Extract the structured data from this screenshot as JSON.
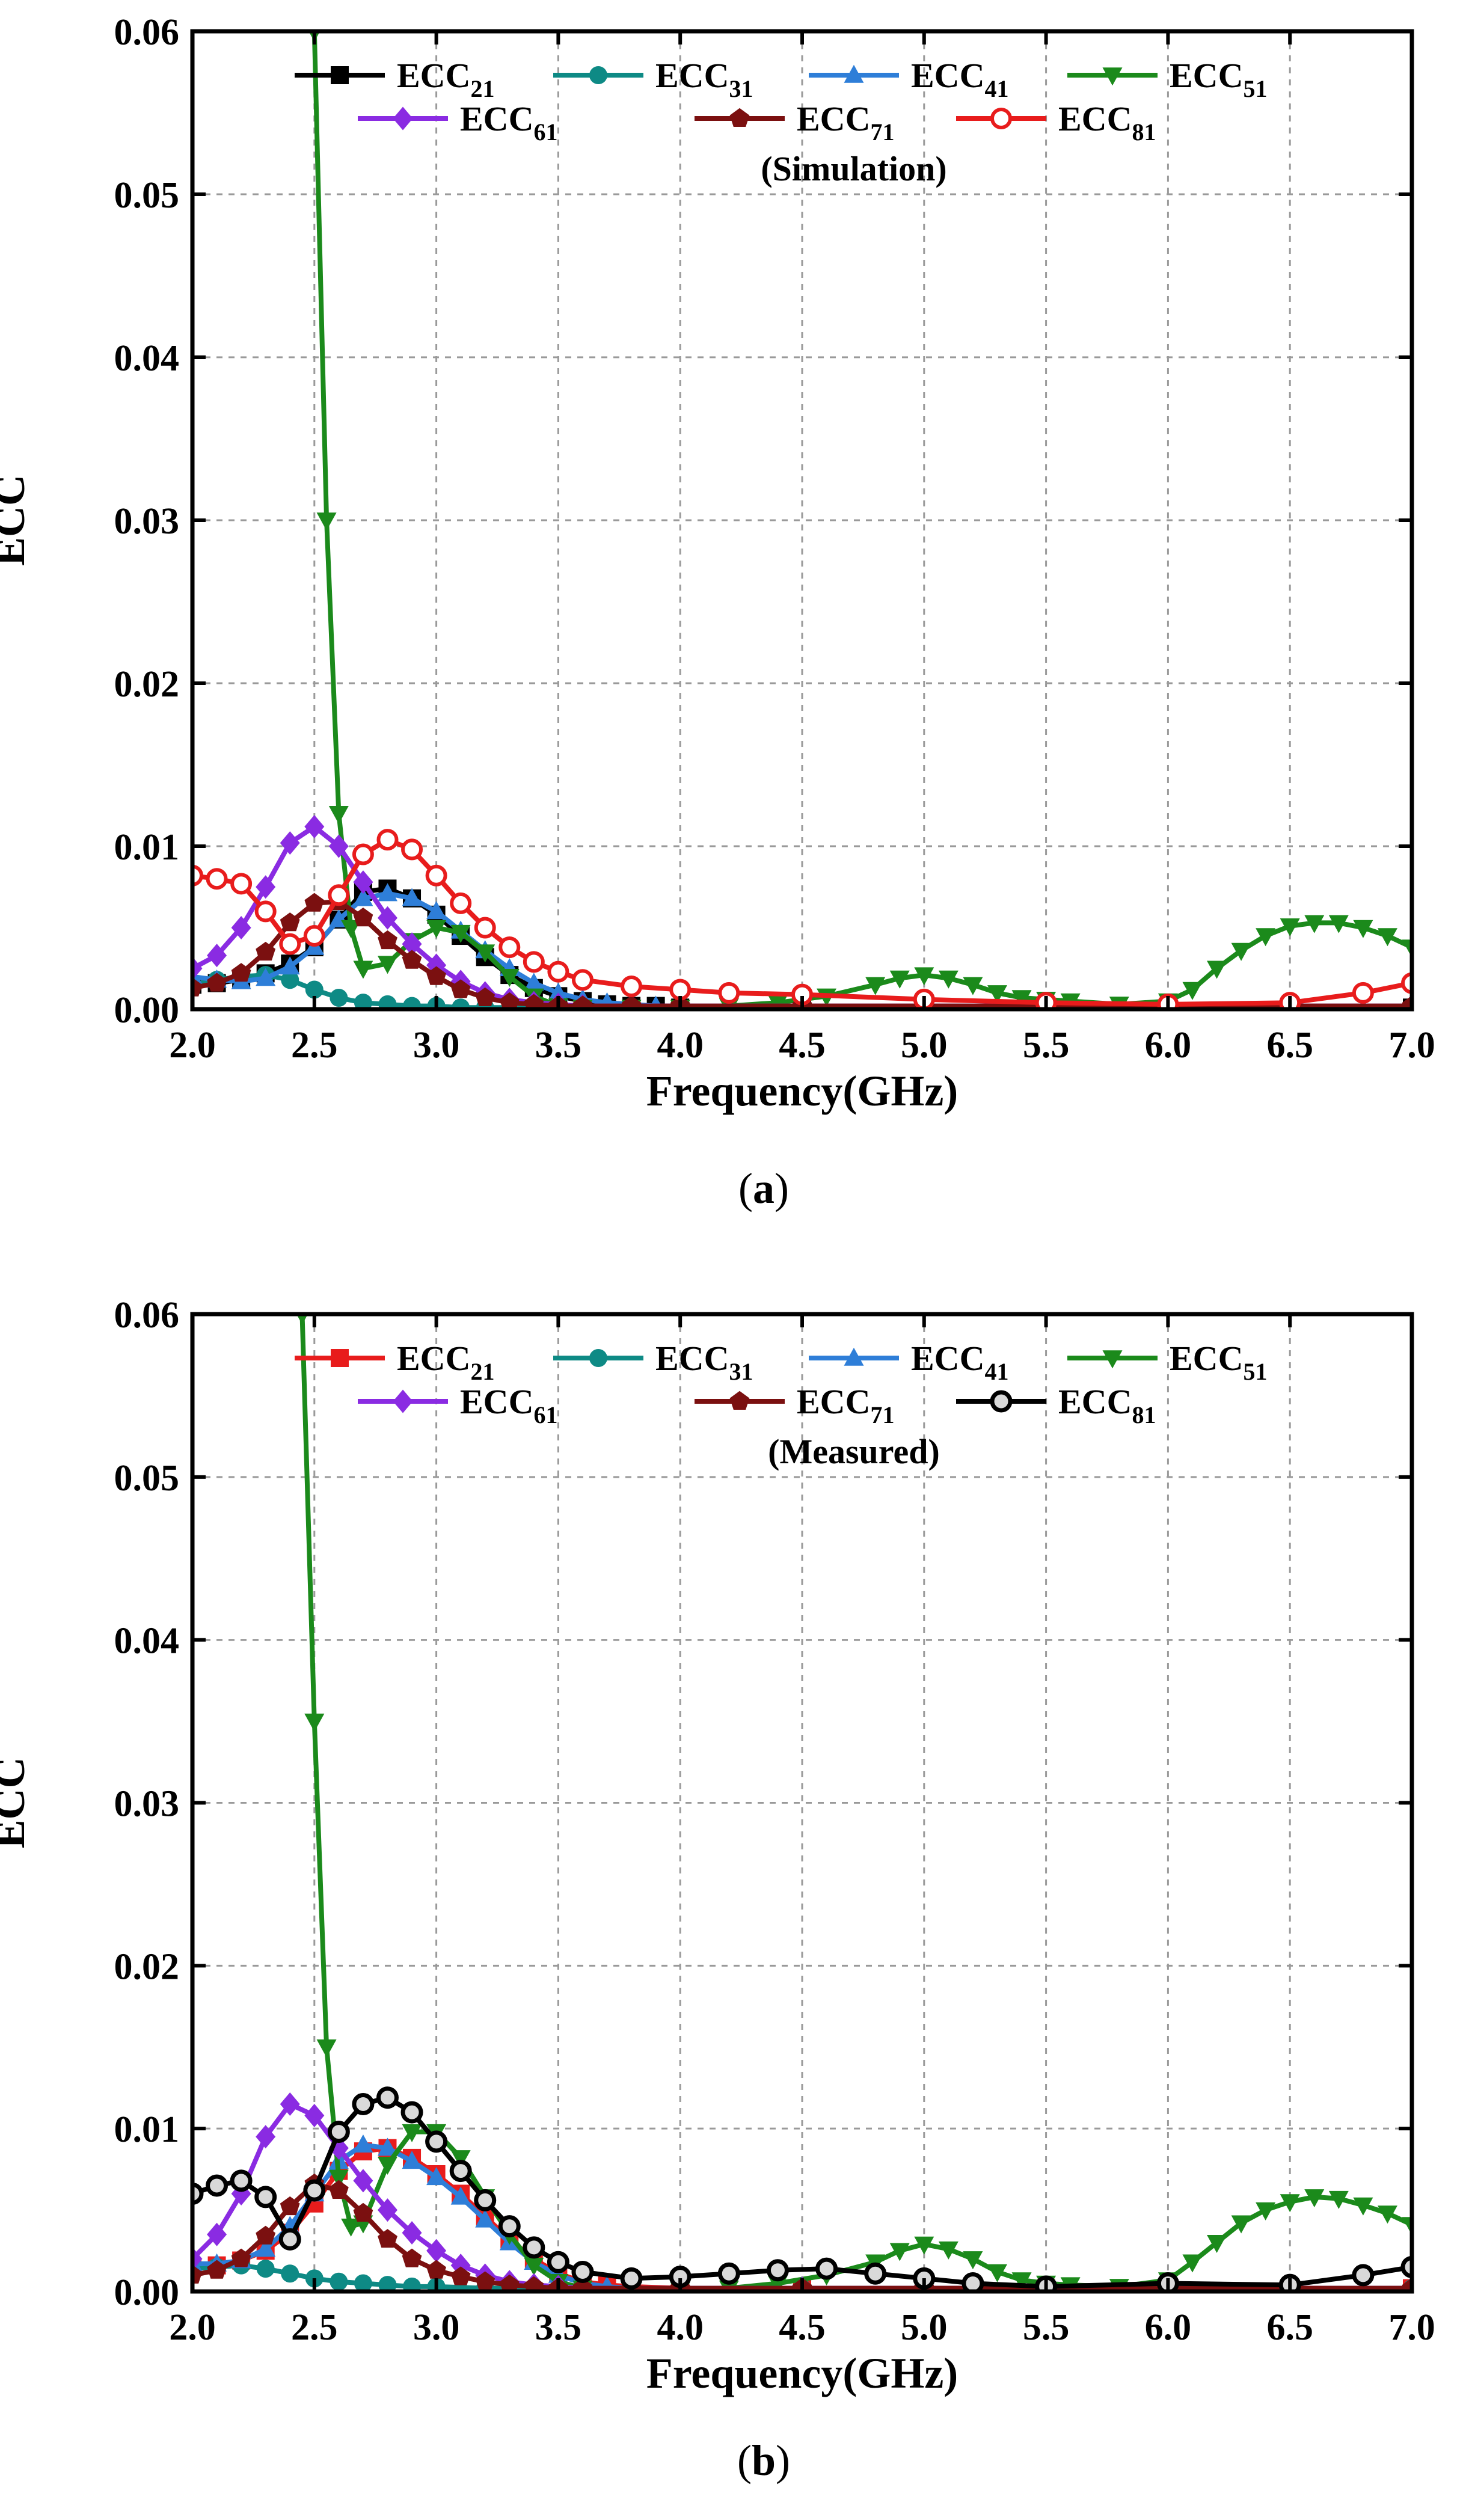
{
  "chart_data": [
    {
      "type": "line",
      "panel_label": "a",
      "annotation": "(Simulation)",
      "xlabel": "Frequency(GHz)",
      "ylabel": "ECC",
      "xlim": [
        2.0,
        7.0
      ],
      "ylim": [
        0.0,
        0.06
      ],
      "xticks": [
        "2.0",
        "2.5",
        "3.0",
        "3.5",
        "4.0",
        "4.5",
        "5.0",
        "5.5",
        "6.0",
        "6.5",
        "7.0"
      ],
      "yticks": [
        "0.00",
        "0.01",
        "0.02",
        "0.03",
        "0.04",
        "0.05",
        "0.06"
      ],
      "grid": true,
      "legend_position": "top",
      "series": [
        {
          "name": "ECC",
          "subscript": "21",
          "color": "#000000",
          "marker": "square",
          "x": [
            2.0,
            2.1,
            2.2,
            2.3,
            2.4,
            2.5,
            2.6,
            2.7,
            2.8,
            2.9,
            3.0,
            3.1,
            3.2,
            3.3,
            3.4,
            3.5,
            3.6,
            3.7,
            3.8,
            3.9,
            4.0,
            4.5,
            5.0,
            5.5,
            6.0,
            6.5,
            7.0
          ],
          "values": [
            0.0015,
            0.0016,
            0.0018,
            0.0022,
            0.0028,
            0.0038,
            0.0055,
            0.0072,
            0.0074,
            0.0068,
            0.0058,
            0.0045,
            0.0032,
            0.0021,
            0.0013,
            0.0008,
            0.0005,
            0.0003,
            0.0002,
            0.0002,
            0.0001,
            0.0001,
            0.0001,
            0.0001,
            0.0001,
            0.0001,
            0.0001
          ]
        },
        {
          "name": "ECC",
          "subscript": "31",
          "color": "#0e8a85",
          "marker": "circle",
          "x": [
            2.0,
            2.1,
            2.2,
            2.3,
            2.4,
            2.5,
            2.6,
            2.7,
            2.8,
            2.9,
            3.0,
            3.1,
            3.2,
            3.5,
            4.0,
            4.5,
            5.0,
            5.5,
            6.0,
            6.5,
            7.0
          ],
          "values": [
            0.0015,
            0.0018,
            0.002,
            0.0021,
            0.0018,
            0.0012,
            0.0007,
            0.0004,
            0.0003,
            0.0002,
            0.0002,
            0.0001,
            0.0001,
            0.0001,
            0.0001,
            0.0001,
            0.0001,
            0.0001,
            0.0001,
            0.0001,
            0.0001
          ]
        },
        {
          "name": "ECC",
          "subscript": "41",
          "color": "#2e7ed8",
          "marker": "triangle-up",
          "x": [
            2.0,
            2.1,
            2.2,
            2.3,
            2.4,
            2.5,
            2.6,
            2.7,
            2.8,
            2.9,
            3.0,
            3.1,
            3.2,
            3.3,
            3.4,
            3.5,
            3.6,
            3.7,
            3.8,
            3.9,
            4.0,
            4.5,
            5.0,
            5.5,
            6.0,
            6.5,
            7.0
          ],
          "values": [
            0.002,
            0.0018,
            0.0017,
            0.0019,
            0.0026,
            0.0038,
            0.0055,
            0.0068,
            0.0071,
            0.0068,
            0.006,
            0.0048,
            0.0036,
            0.0025,
            0.0016,
            0.001,
            0.0006,
            0.0004,
            0.0003,
            0.0002,
            0.0002,
            0.0001,
            0.0001,
            0.0001,
            0.0001,
            0.0001,
            0.0001
          ]
        },
        {
          "name": "ECC",
          "subscript": "51",
          "color": "#1b8a1b",
          "marker": "triangle-down",
          "x": [
            2.5,
            2.55,
            2.6,
            2.65,
            2.7,
            2.8,
            2.9,
            3.0,
            3.1,
            3.2,
            3.3,
            3.4,
            3.5,
            3.6,
            3.8,
            4.0,
            4.2,
            4.4,
            4.6,
            4.8,
            4.9,
            5.0,
            5.1,
            5.2,
            5.3,
            5.4,
            5.5,
            5.6,
            5.8,
            6.0,
            6.1,
            6.2,
            6.3,
            6.4,
            6.5,
            6.6,
            6.7,
            6.8,
            6.9,
            7.0
          ],
          "values": [
            0.06,
            0.03,
            0.012,
            0.005,
            0.0025,
            0.0028,
            0.0042,
            0.005,
            0.0047,
            0.0035,
            0.002,
            0.0008,
            0.0002,
            0.0001,
            0.0001,
            0.0001,
            0.0002,
            0.0004,
            0.0008,
            0.0015,
            0.0019,
            0.0021,
            0.0019,
            0.0015,
            0.001,
            0.0007,
            0.0006,
            0.0005,
            0.0003,
            0.0005,
            0.0012,
            0.0025,
            0.0036,
            0.0045,
            0.0051,
            0.0053,
            0.0053,
            0.005,
            0.0045,
            0.0038
          ]
        },
        {
          "name": "ECC",
          "subscript": "61",
          "color": "#8a2be2",
          "marker": "diamond",
          "x": [
            2.0,
            2.1,
            2.2,
            2.3,
            2.4,
            2.5,
            2.6,
            2.7,
            2.8,
            2.9,
            3.0,
            3.1,
            3.2,
            3.3,
            3.4,
            3.5,
            3.6,
            3.8,
            4.0,
            4.5,
            5.0,
            5.5,
            6.0,
            6.5,
            7.0
          ],
          "values": [
            0.0025,
            0.0033,
            0.005,
            0.0075,
            0.0102,
            0.0112,
            0.01,
            0.0078,
            0.0056,
            0.004,
            0.0027,
            0.0017,
            0.001,
            0.0006,
            0.0004,
            0.0003,
            0.0002,
            0.0002,
            0.0002,
            0.0002,
            0.0002,
            0.0002,
            0.0002,
            0.0002,
            0.0002
          ]
        },
        {
          "name": "ECC",
          "subscript": "71",
          "color": "#7b1010",
          "marker": "pentagon",
          "x": [
            2.0,
            2.1,
            2.2,
            2.3,
            2.4,
            2.5,
            2.6,
            2.7,
            2.8,
            2.9,
            3.0,
            3.1,
            3.2,
            3.3,
            3.4,
            3.5,
            3.6,
            3.8,
            4.0,
            4.5,
            5.0,
            5.5,
            6.0,
            6.5,
            7.0
          ],
          "values": [
            0.0013,
            0.0016,
            0.0022,
            0.0035,
            0.0053,
            0.0065,
            0.0066,
            0.0056,
            0.0042,
            0.003,
            0.002,
            0.0012,
            0.0007,
            0.0004,
            0.0003,
            0.0002,
            0.0002,
            0.0002,
            0.0002,
            0.0002,
            0.0002,
            0.0002,
            0.0002,
            0.0002,
            0.0002
          ]
        },
        {
          "name": "ECC",
          "subscript": "81",
          "color": "#e81c1c",
          "marker": "circle-open",
          "x": [
            2.0,
            2.1,
            2.2,
            2.3,
            2.4,
            2.5,
            2.6,
            2.7,
            2.8,
            2.9,
            3.0,
            3.1,
            3.2,
            3.3,
            3.4,
            3.5,
            3.6,
            3.8,
            4.0,
            4.2,
            4.5,
            5.0,
            5.5,
            6.0,
            6.5,
            6.8,
            7.0
          ],
          "values": [
            0.0082,
            0.008,
            0.0077,
            0.006,
            0.004,
            0.0045,
            0.007,
            0.0095,
            0.0104,
            0.0098,
            0.0082,
            0.0065,
            0.005,
            0.0038,
            0.0029,
            0.0023,
            0.0018,
            0.0014,
            0.0012,
            0.001,
            0.0009,
            0.0006,
            0.0004,
            0.0003,
            0.0004,
            0.001,
            0.0016
          ]
        }
      ]
    },
    {
      "type": "line",
      "panel_label": "b",
      "annotation": "(Measured)",
      "xlabel": "Frequency(GHz)",
      "ylabel": "ECC",
      "xlim": [
        2.0,
        7.0
      ],
      "ylim": [
        0.0,
        0.06
      ],
      "xticks": [
        "2.0",
        "2.5",
        "3.0",
        "3.5",
        "4.0",
        "4.5",
        "5.0",
        "5.5",
        "6.0",
        "6.5",
        "7.0"
      ],
      "yticks": [
        "0.00",
        "0.01",
        "0.02",
        "0.03",
        "0.04",
        "0.05",
        "0.06"
      ],
      "grid": true,
      "legend_position": "top",
      "series": [
        {
          "name": "ECC",
          "subscript": "21",
          "color": "#e81c1c",
          "marker": "square",
          "x": [
            2.0,
            2.1,
            2.2,
            2.3,
            2.4,
            2.5,
            2.6,
            2.7,
            2.8,
            2.9,
            3.0,
            3.1,
            3.2,
            3.3,
            3.4,
            3.5,
            3.6,
            3.7,
            3.8,
            4.0,
            4.5,
            5.0,
            5.5,
            6.0,
            6.5,
            7.0
          ],
          "values": [
            0.0015,
            0.0016,
            0.0019,
            0.0025,
            0.0036,
            0.0054,
            0.0074,
            0.0086,
            0.0088,
            0.0082,
            0.0072,
            0.006,
            0.0046,
            0.0032,
            0.002,
            0.0011,
            0.0006,
            0.0004,
            0.0003,
            0.0002,
            0.0002,
            0.0002,
            0.0002,
            0.0002,
            0.0002,
            0.0002
          ]
        },
        {
          "name": "ECC",
          "subscript": "31",
          "color": "#0e8a85",
          "marker": "circle",
          "x": [
            2.0,
            2.1,
            2.2,
            2.3,
            2.4,
            2.5,
            2.6,
            2.7,
            2.8,
            2.9,
            3.0,
            3.2,
            3.5,
            4.0,
            4.5,
            5.0,
            5.5,
            6.0,
            6.5,
            7.0
          ],
          "values": [
            0.0014,
            0.0015,
            0.0016,
            0.0014,
            0.0011,
            0.0008,
            0.0006,
            0.0005,
            0.0004,
            0.0003,
            0.0003,
            0.0002,
            0.0002,
            0.0002,
            0.0002,
            0.0002,
            0.0002,
            0.0002,
            0.0002,
            0.0002
          ]
        },
        {
          "name": "ECC",
          "subscript": "41",
          "color": "#2e7ed8",
          "marker": "triangle-up",
          "x": [
            2.0,
            2.1,
            2.2,
            2.3,
            2.4,
            2.5,
            2.6,
            2.7,
            2.8,
            2.9,
            3.0,
            3.1,
            3.2,
            3.3,
            3.4,
            3.5,
            3.6,
            3.7,
            3.8,
            4.0,
            4.5,
            5.0,
            5.5,
            6.0,
            6.5,
            7.0
          ],
          "values": [
            0.0017,
            0.0017,
            0.0019,
            0.0026,
            0.004,
            0.006,
            0.008,
            0.009,
            0.0088,
            0.008,
            0.007,
            0.0058,
            0.0044,
            0.003,
            0.0018,
            0.001,
            0.0005,
            0.0003,
            0.0002,
            0.0002,
            0.0002,
            0.0002,
            0.0002,
            0.0002,
            0.0002,
            0.0002
          ]
        },
        {
          "name": "ECC",
          "subscript": "51",
          "color": "#1b8a1b",
          "marker": "triangle-down",
          "x": [
            2.45,
            2.5,
            2.55,
            2.6,
            2.65,
            2.7,
            2.8,
            2.9,
            3.0,
            3.1,
            3.2,
            3.3,
            3.4,
            3.5,
            3.6,
            3.8,
            4.0,
            4.2,
            4.4,
            4.6,
            4.8,
            4.9,
            5.0,
            5.1,
            5.2,
            5.3,
            5.4,
            5.5,
            5.6,
            5.8,
            6.0,
            6.1,
            6.2,
            6.3,
            6.4,
            6.5,
            6.6,
            6.7,
            6.8,
            6.9,
            7.0
          ],
          "values": [
            0.06,
            0.035,
            0.015,
            0.007,
            0.004,
            0.0042,
            0.0078,
            0.0098,
            0.0098,
            0.0082,
            0.0058,
            0.0035,
            0.0016,
            0.0006,
            0.0002,
            0.0001,
            0.0001,
            0.0002,
            0.0005,
            0.001,
            0.0018,
            0.0025,
            0.0029,
            0.0026,
            0.002,
            0.0012,
            0.0007,
            0.0005,
            0.0004,
            0.0003,
            0.0007,
            0.0018,
            0.003,
            0.0042,
            0.005,
            0.0055,
            0.0058,
            0.0057,
            0.0053,
            0.0048,
            0.0041
          ]
        },
        {
          "name": "ECC",
          "subscript": "61",
          "color": "#8a2be2",
          "marker": "diamond",
          "x": [
            2.0,
            2.1,
            2.2,
            2.3,
            2.4,
            2.5,
            2.6,
            2.7,
            2.8,
            2.9,
            3.0,
            3.1,
            3.2,
            3.3,
            3.4,
            3.5,
            3.6,
            3.8,
            4.0,
            4.5,
            5.0,
            5.5,
            6.0,
            6.5,
            7.0
          ],
          "values": [
            0.002,
            0.0035,
            0.006,
            0.0095,
            0.0115,
            0.0108,
            0.0088,
            0.0068,
            0.005,
            0.0036,
            0.0025,
            0.0016,
            0.001,
            0.0006,
            0.0004,
            0.0003,
            0.0002,
            0.0002,
            0.0002,
            0.0002,
            0.0002,
            0.0002,
            0.0002,
            0.0002,
            0.0002
          ]
        },
        {
          "name": "ECC",
          "subscript": "71",
          "color": "#7b1010",
          "marker": "pentagon",
          "x": [
            2.0,
            2.1,
            2.2,
            2.3,
            2.4,
            2.5,
            2.6,
            2.7,
            2.8,
            2.9,
            3.0,
            3.1,
            3.2,
            3.3,
            3.4,
            3.5,
            3.6,
            3.8,
            4.0,
            4.5,
            5.0,
            5.5,
            6.0,
            6.5,
            7.0
          ],
          "values": [
            0.001,
            0.0013,
            0.002,
            0.0034,
            0.0052,
            0.0066,
            0.0062,
            0.0048,
            0.0032,
            0.002,
            0.0013,
            0.0009,
            0.0006,
            0.0004,
            0.0003,
            0.0002,
            0.0002,
            0.0002,
            0.0002,
            0.0002,
            0.0002,
            0.0002,
            0.0002,
            0.0002,
            0.0002
          ]
        },
        {
          "name": "ECC",
          "subscript": "81",
          "color": "#000000",
          "marker": "sphere",
          "x": [
            2.0,
            2.1,
            2.2,
            2.3,
            2.4,
            2.5,
            2.6,
            2.7,
            2.8,
            2.9,
            3.0,
            3.1,
            3.2,
            3.3,
            3.4,
            3.5,
            3.6,
            3.8,
            4.0,
            4.2,
            4.4,
            4.6,
            4.8,
            5.0,
            5.2,
            5.5,
            6.0,
            6.5,
            6.8,
            7.0
          ],
          "values": [
            0.006,
            0.0065,
            0.0068,
            0.0058,
            0.0032,
            0.0062,
            0.0098,
            0.0115,
            0.0119,
            0.011,
            0.0092,
            0.0074,
            0.0056,
            0.004,
            0.0027,
            0.0018,
            0.0012,
            0.0008,
            0.0009,
            0.0011,
            0.0013,
            0.0014,
            0.0011,
            0.0008,
            0.0005,
            0.0003,
            0.0005,
            0.0004,
            0.001,
            0.0015
          ]
        }
      ]
    }
  ]
}
